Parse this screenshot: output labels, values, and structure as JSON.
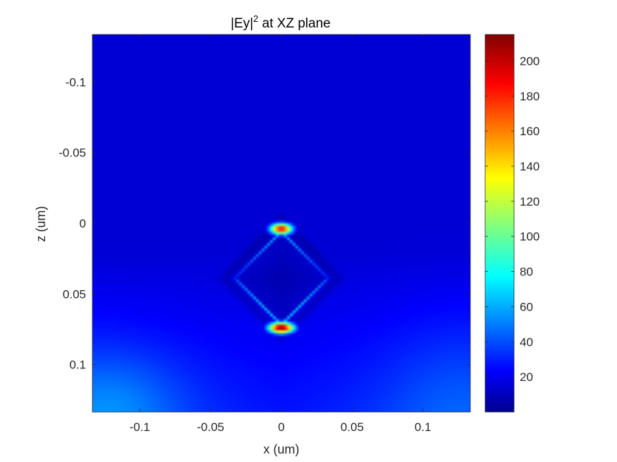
{
  "chart_data": {
    "type": "heatmap",
    "title": "|Ey|",
    "title_superscript": "2",
    "title_suffix": " at XZ plane",
    "xlabel": "x (um)",
    "ylabel": "z (um)",
    "xlim": [
      -0.1335,
      0.1335
    ],
    "ylim": [
      -0.1335,
      0.1335
    ],
    "y_axis_reversed": true,
    "x_ticks": [
      -0.1,
      -0.05,
      0,
      0.05,
      0.1
    ],
    "x_tick_labels": [
      "-0.1",
      "-0.05",
      "0",
      "0.05",
      "0.1"
    ],
    "y_ticks": [
      -0.1,
      -0.05,
      0,
      0.05,
      0.1
    ],
    "y_tick_labels": [
      "-0.1",
      "-0.05",
      "0",
      "0.05",
      "0.1"
    ],
    "colormap": "jet",
    "color_range": [
      0,
      215
    ],
    "colorbar_ticks": [
      20,
      40,
      60,
      80,
      100,
      120,
      140,
      160,
      180,
      200
    ],
    "colorbar_tick_labels": [
      "20",
      "40",
      "60",
      "80",
      "100",
      "120",
      "140",
      "160",
      "180",
      "200"
    ],
    "field_description_points": {
      "background_value": 18,
      "top_tip": {
        "x": 0,
        "z": 0.004,
        "value": 190
      },
      "bottom_tip": {
        "x": 0,
        "z": 0.074,
        "value": 215
      },
      "shape": "diamond",
      "diamond_vertices_um": [
        [
          0,
          0.006
        ],
        [
          0.032,
          0.04
        ],
        [
          0,
          0.072
        ],
        [
          -0.032,
          0.04
        ]
      ]
    }
  }
}
